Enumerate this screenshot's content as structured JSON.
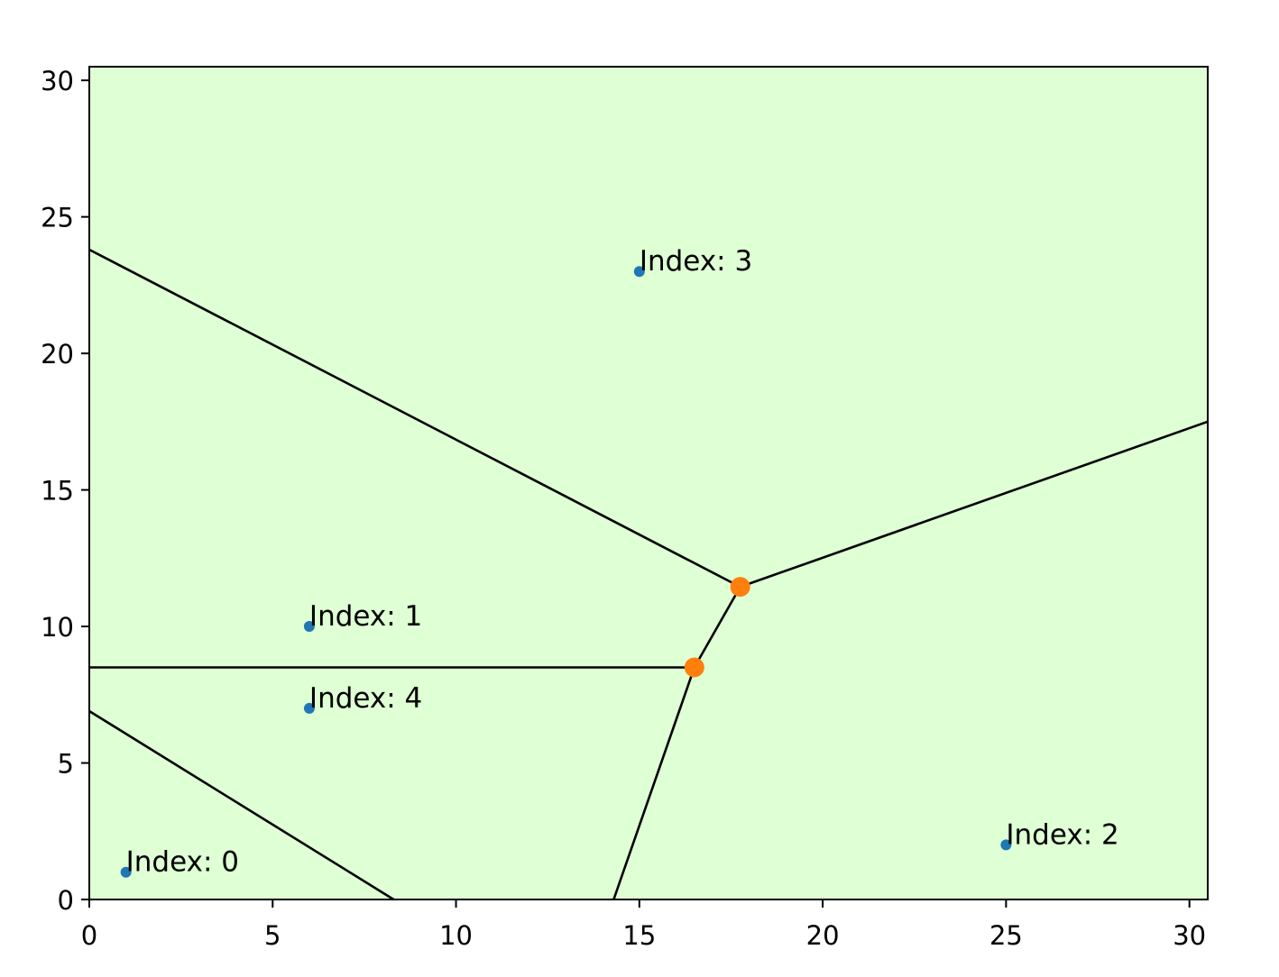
{
  "chart_data": {
    "type": "scatter",
    "title": "",
    "xlabel": "",
    "ylabel": "",
    "xlim": [
      0,
      30.5
    ],
    "ylim": [
      0,
      30.5
    ],
    "xticks": [
      "0",
      "5",
      "10",
      "15",
      "20",
      "25",
      "30"
    ],
    "yticks": [
      "0",
      "5",
      "10",
      "15",
      "20",
      "25",
      "30"
    ],
    "grid": false,
    "background_color": "#dfffd4",
    "series": [
      {
        "marker_color": "#1f77b4",
        "points": [
          {
            "x": 1,
            "y": 1,
            "label": "Index: 0"
          },
          {
            "x": 6,
            "y": 10,
            "label": "Index: 1"
          },
          {
            "x": 25,
            "y": 2,
            "label": "Index: 2"
          },
          {
            "x": 15,
            "y": 23,
            "label": "Index: 3"
          },
          {
            "x": 6,
            "y": 7,
            "label": "Index: 4"
          }
        ]
      },
      {
        "marker_color": "#ff7f0e",
        "points": [
          {
            "x": 16.5,
            "y": 8.5
          },
          {
            "x": 17.75,
            "y": 11.45
          }
        ]
      }
    ],
    "edges": [
      {
        "x1": 0,
        "y1": 23.8,
        "x2": 17.75,
        "y2": 11.45
      },
      {
        "x1": 17.75,
        "y1": 11.45,
        "x2": 30.5,
        "y2": 17.5
      },
      {
        "x1": 17.75,
        "y1": 11.45,
        "x2": 16.5,
        "y2": 8.5
      },
      {
        "x1": 0,
        "y1": 8.5,
        "x2": 16.5,
        "y2": 8.5
      },
      {
        "x1": 16.5,
        "y1": 8.5,
        "x2": 14.3,
        "y2": 0
      },
      {
        "x1": 0,
        "y1": 6.9,
        "x2": 8.3,
        "y2": 0
      }
    ],
    "edge_color": "#000000"
  }
}
